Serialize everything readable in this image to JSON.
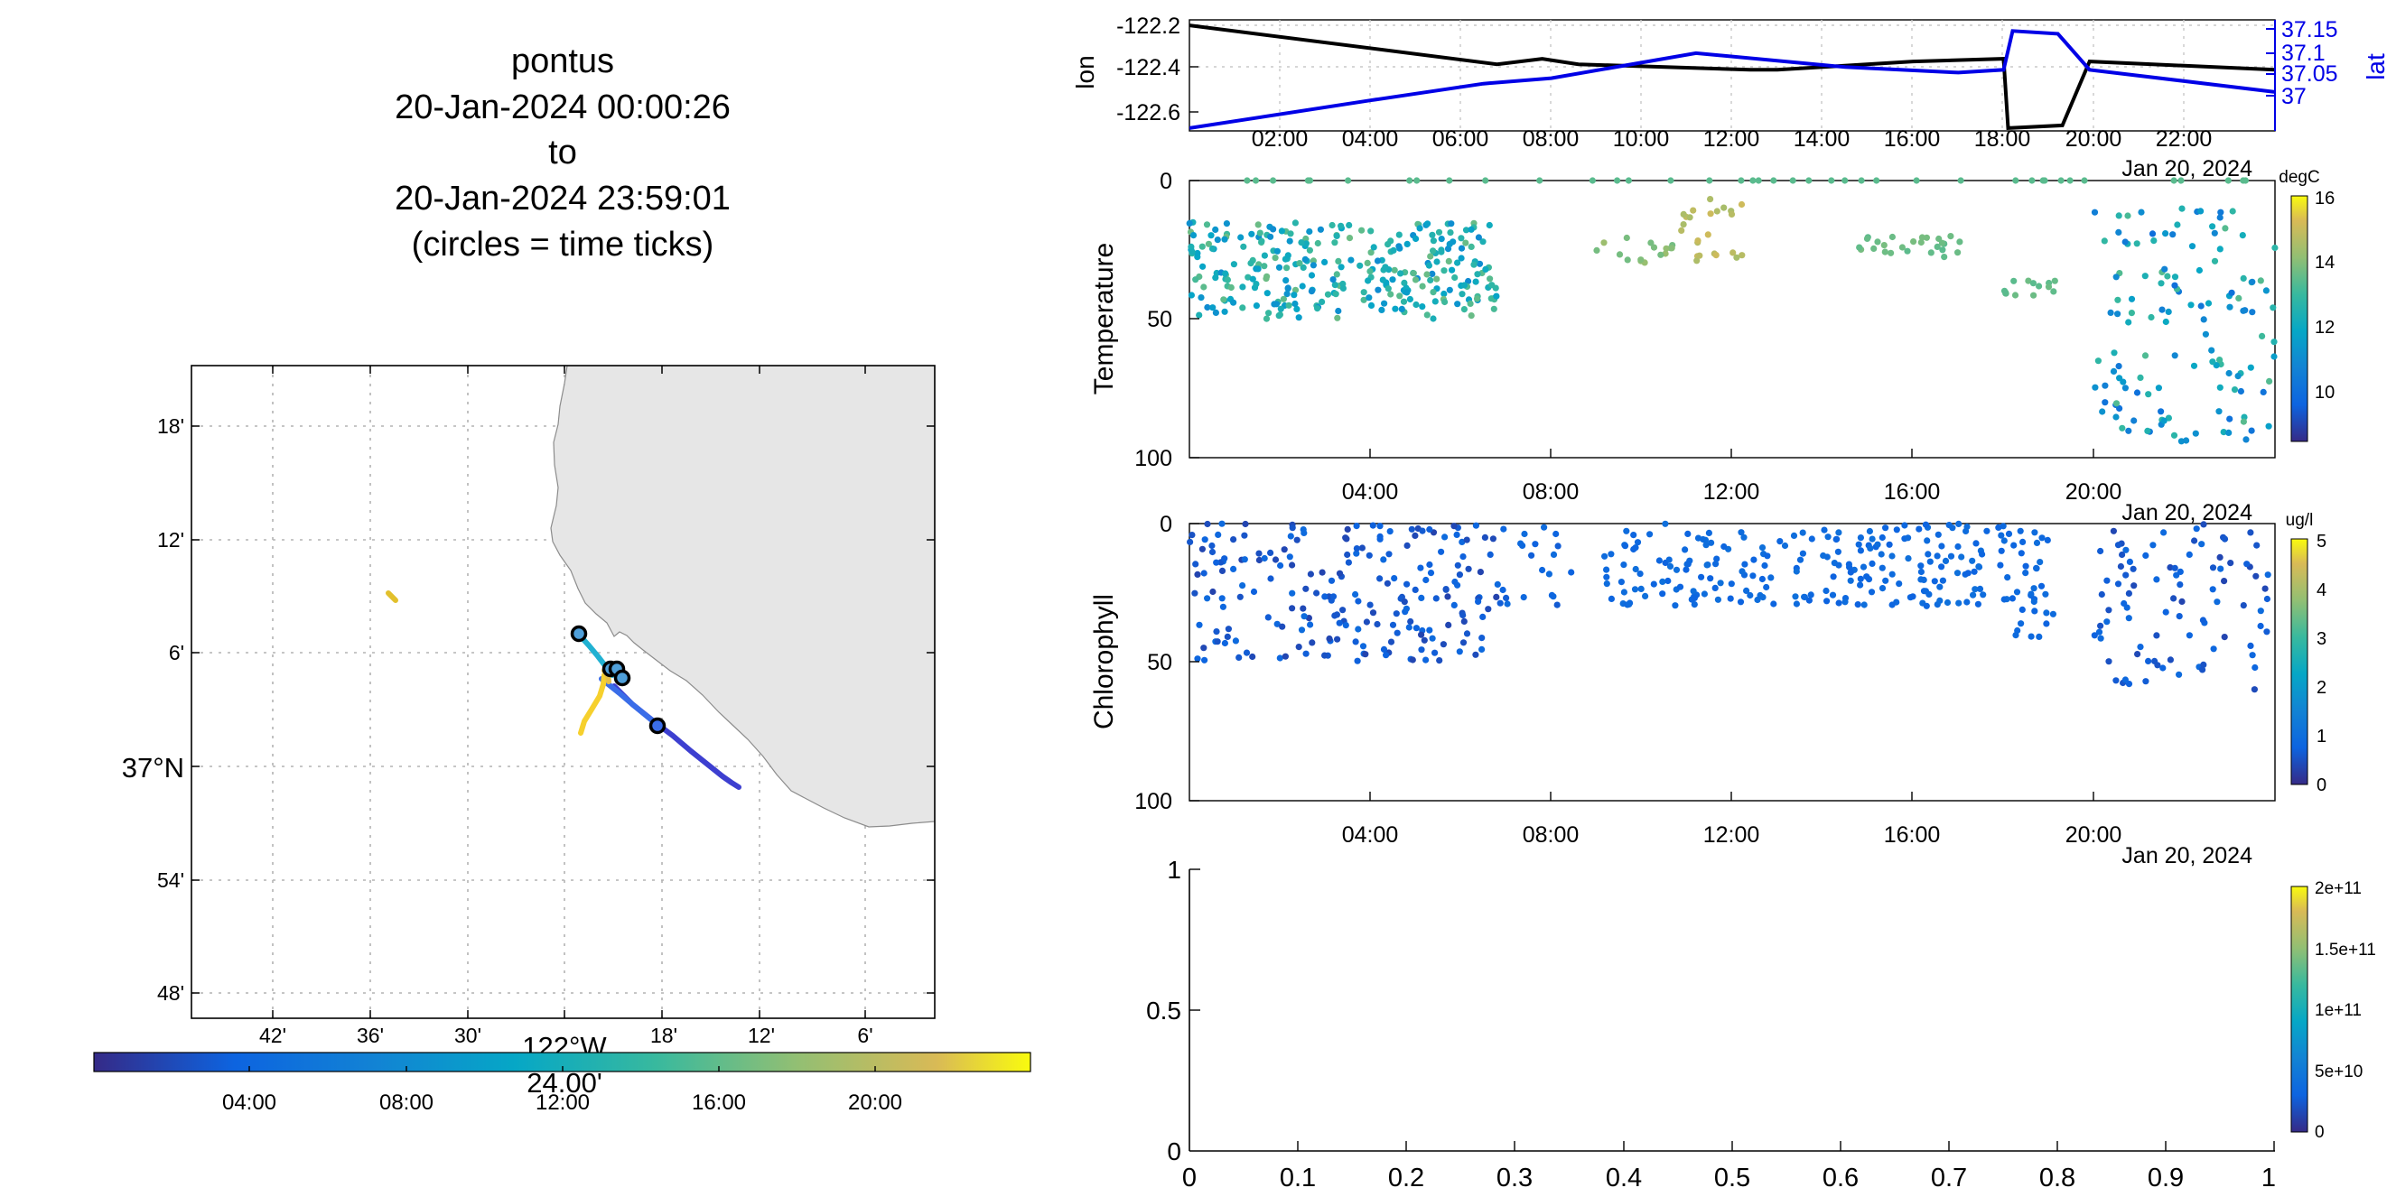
{
  "title": {
    "lines": [
      "pontus",
      "20-Jan-2024 00:00:26",
      "to",
      "20-Jan-2024 23:59:01",
      "(circles = time ticks)"
    ]
  },
  "map": {
    "lat_ticks": [
      "18'",
      "12'",
      "6'",
      "37°N",
      "54'",
      "48'"
    ],
    "lon_ticks": [
      "42'",
      "36'",
      "30'",
      "18'",
      "12'",
      "6'"
    ],
    "lon_center_label": "122°W",
    "lon_center_sub": "24.00'",
    "colors": {
      "land": "#e6e6e6",
      "coast": "#8c8c8c",
      "marker": "#000000"
    },
    "track_segments": [
      {
        "from_time": "00:00",
        "to_time": "07:00",
        "color": "#4f4cd9"
      },
      {
        "from_time": "07:00",
        "to_time": "10:00",
        "color": "#2f8fe8"
      },
      {
        "from_time": "10:30",
        "to_time": "12:30",
        "color": "#21b1d2"
      },
      {
        "from_time": "18:00",
        "to_time": "23:59",
        "color": "#f6d02d"
      },
      {
        "from_time": "20:00",
        "to_time": "21:00",
        "color": "#e8c52f"
      }
    ]
  },
  "time_colorbar": {
    "ticks": [
      "04:00",
      "08:00",
      "12:00",
      "16:00",
      "20:00"
    ]
  },
  "chart_data": [
    {
      "type": "line",
      "ylabel": "lon",
      "ylabel_right": "lat",
      "ylim": [
        -122.6,
        -122.2
      ],
      "ylim_right": [
        36.975,
        37.175
      ],
      "yticks": [
        "-122.2",
        "-122.4",
        "-122.6"
      ],
      "yticks_right": [
        "37.15",
        "37.1",
        "37.05",
        "37"
      ],
      "xticks": [
        "02:00",
        "04:00",
        "06:00",
        "08:00",
        "10:00",
        "12:00",
        "14:00",
        "16:00",
        "18:00",
        "20:00",
        "22:00"
      ],
      "xdate_label": "Jan 20, 2024",
      "series": [
        {
          "name": "lon",
          "color": "#000000",
          "x_hours": [
            0,
            6.8,
            7.8,
            8.6,
            12.4,
            13.0,
            16.0,
            18.0,
            18.1,
            19.3,
            19.9,
            24
          ],
          "values": [
            -122.22,
            -122.36,
            -122.34,
            -122.36,
            -122.38,
            -122.38,
            -122.35,
            -122.34,
            -122.59,
            -122.58,
            -122.35,
            -122.38
          ]
        },
        {
          "name": "lat",
          "color": "#0000e6",
          "x_hours": [
            0,
            4.0,
            6.5,
            8.0,
            11.2,
            14.5,
            17.0,
            18.0,
            18.2,
            19.2,
            19.9,
            24
          ],
          "values": [
            36.98,
            37.03,
            37.06,
            37.07,
            37.115,
            37.09,
            37.08,
            37.085,
            37.155,
            37.15,
            37.085,
            37.045
          ]
        }
      ]
    },
    {
      "type": "scatter",
      "ylabel": "Temperature",
      "yticks": [
        "0",
        "50",
        "100"
      ],
      "ylim": [
        100,
        0
      ],
      "xticks": [
        "04:00",
        "08:00",
        "12:00",
        "16:00",
        "20:00"
      ],
      "xdate_label": "Jan 20, 2024",
      "colorbar": {
        "unit": "degC",
        "range": [
          8.5,
          16.5
        ],
        "ticks": [
          "16",
          "14",
          "12",
          "10"
        ]
      },
      "groups": [
        {
          "x_range": [
            0,
            6.8
          ],
          "depth_range": [
            15,
            50
          ],
          "value_range": [
            11,
            13.8
          ],
          "count": 300
        },
        {
          "x_range": [
            0,
            24
          ],
          "depth_range": [
            0,
            0
          ],
          "value_range": [
            13.5,
            13.5
          ],
          "count": 40
        },
        {
          "x_range": [
            9,
            10.8
          ],
          "depth_range": [
            20,
            30
          ],
          "value_range": [
            13.8,
            14.5
          ],
          "count": 16
        },
        {
          "x_range": [
            10.8,
            12.3
          ],
          "depth_range": [
            0,
            30
          ],
          "value_range": [
            14.5,
            15.2
          ],
          "count": 24
        },
        {
          "x_range": [
            14.8,
            17.1
          ],
          "depth_range": [
            20,
            28
          ],
          "value_range": [
            13.5,
            13.9
          ],
          "count": 26
        },
        {
          "x_range": [
            18.0,
            19.2
          ],
          "depth_range": [
            36,
            42
          ],
          "value_range": [
            13.5,
            13.8
          ],
          "count": 14
        },
        {
          "x_range": [
            20.0,
            24.0
          ],
          "depth_range": [
            10,
            95
          ],
          "value_range": [
            10.0,
            13.5
          ],
          "count": 130
        }
      ]
    },
    {
      "type": "scatter",
      "ylabel": "Chlorophyll",
      "yticks": [
        "0",
        "50",
        "100"
      ],
      "ylim": [
        100,
        0
      ],
      "xticks": [
        "04:00",
        "08:00",
        "12:00",
        "16:00",
        "20:00"
      ],
      "xdate_label": "Jan 20, 2024",
      "colorbar": {
        "unit": "ug/l",
        "range": [
          0,
          5
        ],
        "ticks": [
          "5",
          "4",
          "3",
          "2",
          "1",
          "0"
        ]
      },
      "groups": [
        {
          "x_range": [
            0,
            6.8
          ],
          "depth_range": [
            0,
            50
          ],
          "value_range": [
            0.3,
            0.9
          ],
          "count": 210
        },
        {
          "x_range": [
            6.8,
            8.5
          ],
          "depth_range": [
            0,
            30
          ],
          "value_range": [
            0.6,
            0.9
          ],
          "count": 22
        },
        {
          "x_range": [
            9.0,
            11.5
          ],
          "depth_range": [
            0,
            30
          ],
          "value_range": [
            0.7,
            1.0
          ],
          "count": 60
        },
        {
          "x_range": [
            11.5,
            19.0
          ],
          "depth_range": [
            0,
            30
          ],
          "value_range": [
            0.7,
            1.0
          ],
          "count": 190
        },
        {
          "x_range": [
            18.0,
            19.2
          ],
          "depth_range": [
            30,
            42
          ],
          "value_range": [
            0.7,
            0.9
          ],
          "count": 10
        },
        {
          "x_range": [
            20.0,
            24.0
          ],
          "depth_range": [
            0,
            60
          ],
          "value_range": [
            0.3,
            0.9
          ],
          "count": 90
        }
      ]
    },
    {
      "type": "scatter",
      "xlim": [
        0,
        1
      ],
      "ylim": [
        0,
        1
      ],
      "xticks": [
        "0",
        "0.1",
        "0.2",
        "0.3",
        "0.4",
        "0.5",
        "0.6",
        "0.7",
        "0.8",
        "0.9",
        "1"
      ],
      "yticks": [
        "0",
        "0.5",
        "1"
      ],
      "colorbar": {
        "range": [
          0,
          200000000000.0
        ],
        "ticks": [
          "2e+11",
          "1.5e+11",
          "1e+11",
          "5e+10",
          "0"
        ]
      },
      "values": []
    }
  ]
}
